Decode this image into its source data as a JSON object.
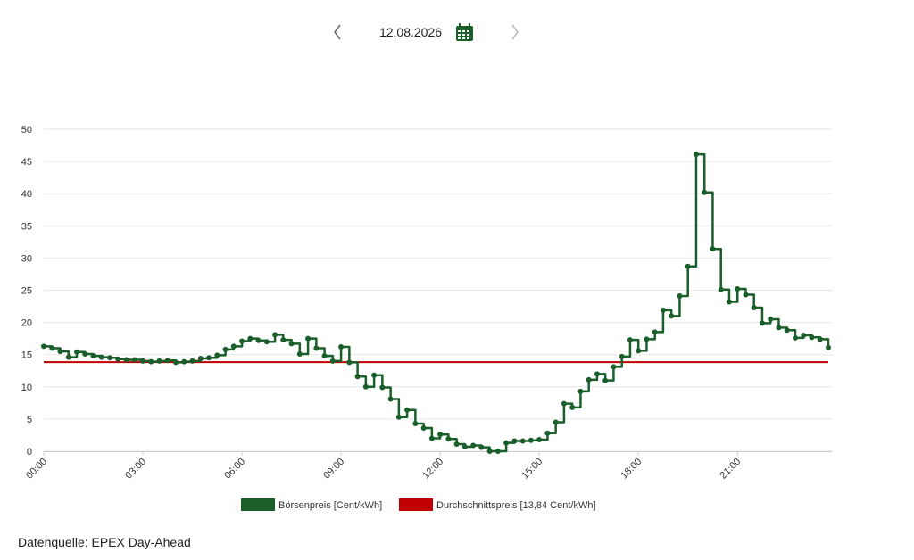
{
  "header": {
    "date": "12.08.2026"
  },
  "chart_data": {
    "type": "step",
    "categories": [
      "00:00",
      null,
      null,
      null,
      null,
      null,
      null,
      null,
      null,
      null,
      null,
      null,
      "03:00",
      null,
      null,
      null,
      null,
      null,
      null,
      null,
      null,
      null,
      null,
      null,
      "06:00",
      null,
      null,
      null,
      null,
      null,
      null,
      null,
      null,
      null,
      null,
      null,
      "09:00",
      null,
      null,
      null,
      null,
      null,
      null,
      null,
      null,
      null,
      null,
      null,
      "12:00",
      null,
      null,
      null,
      null,
      null,
      null,
      null,
      null,
      null,
      null,
      null,
      "15:00",
      null,
      null,
      null,
      null,
      null,
      null,
      null,
      null,
      null,
      null,
      null,
      "18:00",
      null,
      null,
      null,
      null,
      null,
      null,
      null,
      null,
      null,
      null,
      null,
      "21:00",
      null,
      null,
      null,
      null,
      null,
      null,
      null,
      null,
      null,
      null,
      null
    ],
    "series": [
      {
        "name": "Börsenpreis [Cent/kWh]",
        "color": "#1a5e2a",
        "values": [
          16.3,
          16.0,
          15.5,
          14.6,
          15.4,
          15.1,
          14.8,
          14.6,
          14.5,
          14.3,
          14.2,
          14.2,
          14.0,
          13.9,
          14.0,
          14.1,
          13.8,
          13.9,
          14.0,
          14.4,
          14.5,
          14.9,
          15.8,
          16.3,
          17.1,
          17.5,
          17.2,
          17.0,
          18.1,
          17.3,
          16.7,
          15.1,
          17.5,
          16.0,
          14.8,
          14.0,
          16.2,
          13.8,
          11.6,
          10.0,
          11.8,
          9.9,
          8.1,
          5.3,
          6.4,
          4.3,
          3.6,
          2.0,
          2.6,
          1.9,
          1.1,
          0.7,
          0.9,
          0.6,
          0.0,
          0.0,
          1.3,
          1.6,
          1.6,
          1.7,
          1.8,
          2.8,
          4.5,
          7.4,
          6.8,
          9.3,
          11.1,
          12.0,
          11.0,
          13.1,
          14.7,
          17.3,
          15.6,
          17.4,
          18.5,
          21.9,
          21.0,
          24.1,
          28.7,
          46.1,
          40.2,
          31.4,
          25.1,
          23.2,
          25.2,
          24.3,
          22.3,
          19.9,
          20.5,
          19.2,
          18.8,
          17.6,
          18.0,
          17.7,
          17.4,
          16.1
        ]
      }
    ],
    "average": {
      "name": "Durchschnittspreis [13,84 Cent/kWh]",
      "color": "#c00000",
      "value": 13.84
    },
    "ylim": [
      0,
      50
    ],
    "yticks": [
      0,
      5,
      10,
      15,
      20,
      25,
      30,
      35,
      40,
      45,
      50
    ],
    "grid": true
  },
  "footer": {
    "source": "Datenquelle: EPEX Day-Ahead"
  }
}
